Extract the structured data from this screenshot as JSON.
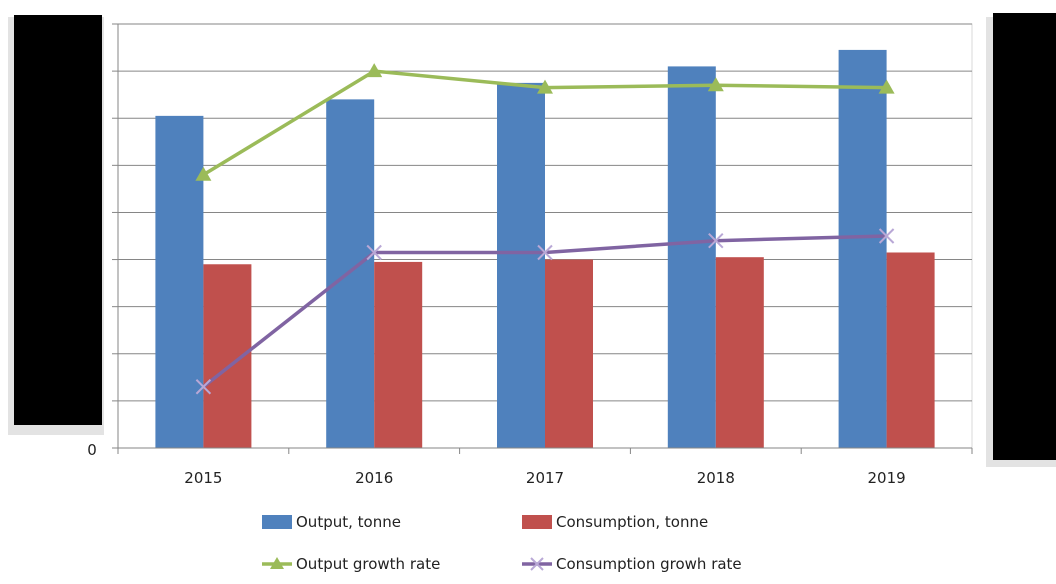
{
  "chart_data": {
    "type": "bar",
    "categories": [
      "2015",
      "2016",
      "2017",
      "2018",
      "2019"
    ],
    "y_tick_label": "0",
    "ylim": [
      0,
      9
    ],
    "grid": true,
    "legend_position": "bottom",
    "series": [
      {
        "name": "Output, tonne",
        "type": "bar",
        "color": "#4f81bd",
        "values": [
          7.05,
          7.4,
          7.75,
          8.1,
          8.45
        ]
      },
      {
        "name": "Consumption, tonne",
        "type": "bar",
        "color": "#c0504d",
        "values": [
          3.9,
          3.95,
          4.0,
          4.05,
          4.15
        ]
      },
      {
        "name": "Output growth rate",
        "type": "line",
        "marker": "triangle",
        "color": "#9bbb59",
        "values": [
          5.8,
          8.0,
          7.65,
          7.7,
          7.65
        ]
      },
      {
        "name": "Consumption growh rate",
        "type": "line",
        "marker": "x",
        "color": "#8064a2",
        "values": [
          1.3,
          4.15,
          4.15,
          4.4,
          4.5
        ]
      }
    ]
  }
}
